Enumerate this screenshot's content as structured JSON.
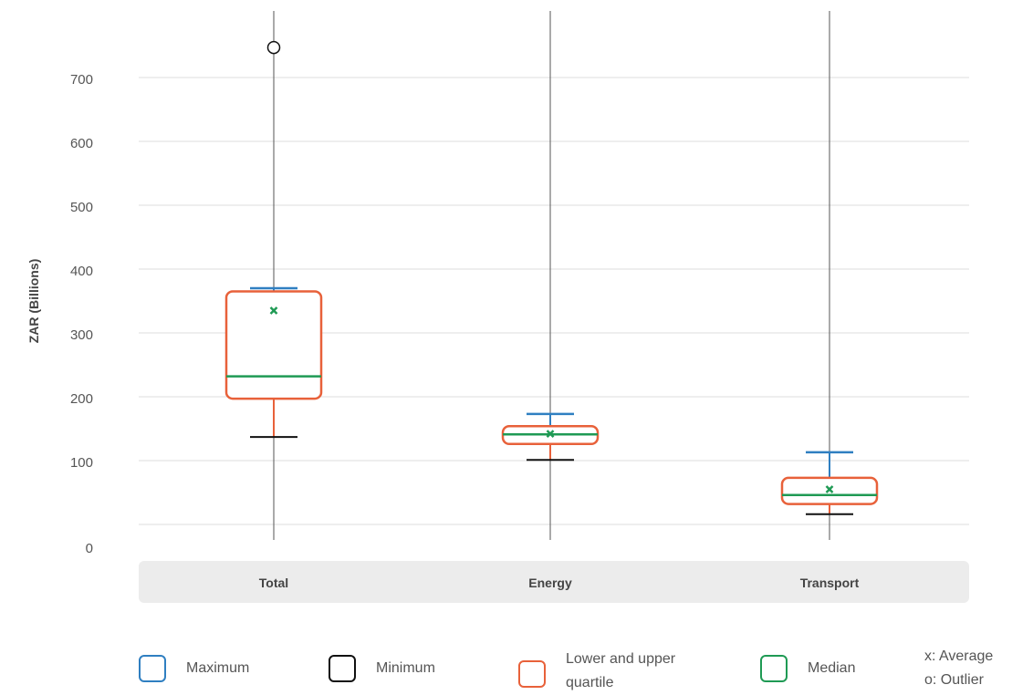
{
  "chart_data": {
    "type": "boxplot",
    "ylabel": "ZAR (Billions)",
    "ylim": [
      0,
      800
    ],
    "yticks": [
      0,
      100,
      200,
      300,
      400,
      500,
      600,
      700
    ],
    "grid": true,
    "categories": [
      "Total",
      "Energy",
      "Transport"
    ],
    "boxes": [
      {
        "category": "Total",
        "max": 370,
        "q3": 365,
        "median": 232,
        "q1": 197,
        "min": 137,
        "mean": 335,
        "outliers": [
          747
        ]
      },
      {
        "category": "Energy",
        "max": 173,
        "q3": 154,
        "median": 141,
        "q1": 126,
        "min": 101,
        "mean": 142,
        "outliers": []
      },
      {
        "category": "Transport",
        "max": 113,
        "q3": 73,
        "median": 46,
        "q1": 32,
        "min": 16,
        "mean": 55,
        "outliers": []
      }
    ]
  },
  "legend": {
    "items": [
      {
        "label": "Maximum",
        "color": "#2f7fc1"
      },
      {
        "label": "Minimum",
        "color": "#111111"
      },
      {
        "label": "Lower and upper quartile",
        "color": "#e8613a"
      },
      {
        "label": "Median",
        "color": "#1f9a54"
      }
    ],
    "notes": [
      "x: Average",
      "o: Outlier"
    ]
  },
  "colors": {
    "max": "#2f7fc1",
    "min": "#111111",
    "quartile": "#e8613a",
    "median": "#1f9a54",
    "mean": "#1f9a54",
    "grid": "#dddddd",
    "axis_band": "#ececec"
  }
}
